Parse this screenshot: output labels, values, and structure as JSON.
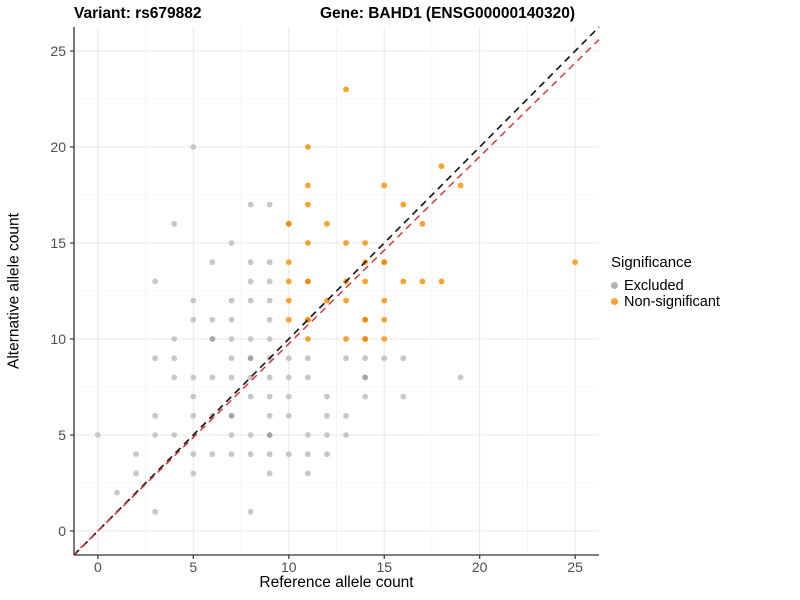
{
  "header": {
    "variant_title": "Variant: rs679882",
    "gene_title": "Gene: BAHD1 (ENSG00000140320)"
  },
  "chart_data": {
    "type": "scatter",
    "xlabel": "Reference allele count",
    "ylabel": "Alternative allele count",
    "xlim": [
      -1.25,
      26.25
    ],
    "ylim": [
      -1.25,
      26.25
    ],
    "xticks": [
      0,
      5,
      10,
      15,
      20,
      25
    ],
    "yticks": [
      0,
      5,
      10,
      15,
      20,
      25
    ],
    "grid": "major+minor",
    "legend_title": "Significance",
    "series": [
      {
        "name": "Excluded",
        "color": "#c7c7c7",
        "color_overlap": "#a4a4a4",
        "legend_color": "#b3b3b3",
        "points": [
          [
            5,
            20
          ],
          [
            8,
            17
          ],
          [
            9,
            17
          ],
          [
            4,
            16
          ],
          [
            7,
            15
          ],
          [
            6,
            14
          ],
          [
            8,
            14
          ],
          [
            9,
            14
          ],
          [
            3,
            13
          ],
          [
            8,
            13
          ],
          [
            9,
            13
          ],
          [
            5,
            12
          ],
          [
            7,
            12
          ],
          [
            8,
            12
          ],
          [
            9,
            12
          ],
          [
            5,
            11
          ],
          [
            6,
            11
          ],
          [
            7,
            11
          ],
          [
            9,
            11
          ],
          [
            4,
            10
          ],
          [
            6,
            10,
            2
          ],
          [
            7,
            10
          ],
          [
            8,
            10
          ],
          [
            9,
            10
          ],
          [
            3,
            9
          ],
          [
            4,
            9
          ],
          [
            7,
            9
          ],
          [
            8,
            9,
            2
          ],
          [
            9,
            9
          ],
          [
            10,
            9
          ],
          [
            11,
            9
          ],
          [
            13,
            9
          ],
          [
            14,
            9
          ],
          [
            15,
            9
          ],
          [
            16,
            9
          ],
          [
            4,
            8
          ],
          [
            5,
            8
          ],
          [
            6,
            8
          ],
          [
            7,
            8
          ],
          [
            8,
            8
          ],
          [
            9,
            8
          ],
          [
            10,
            8
          ],
          [
            11,
            8
          ],
          [
            14,
            8,
            2
          ],
          [
            19,
            8
          ],
          [
            5,
            7
          ],
          [
            8,
            7
          ],
          [
            9,
            7
          ],
          [
            10,
            7
          ],
          [
            12,
            7
          ],
          [
            14,
            7
          ],
          [
            16,
            7
          ],
          [
            3,
            6
          ],
          [
            5,
            6
          ],
          [
            6,
            6
          ],
          [
            7,
            6,
            2
          ],
          [
            9,
            6
          ],
          [
            10,
            6
          ],
          [
            12,
            6
          ],
          [
            13,
            6
          ],
          [
            0,
            5
          ],
          [
            3,
            5
          ],
          [
            4,
            5
          ],
          [
            7,
            5
          ],
          [
            8,
            5
          ],
          [
            9,
            5,
            2
          ],
          [
            11,
            5
          ],
          [
            12,
            5
          ],
          [
            13,
            5
          ],
          [
            2,
            4
          ],
          [
            5,
            4
          ],
          [
            6,
            4
          ],
          [
            7,
            4
          ],
          [
            8,
            4
          ],
          [
            9,
            4
          ],
          [
            10,
            4
          ],
          [
            11,
            4
          ],
          [
            12,
            4
          ],
          [
            2,
            3
          ],
          [
            5,
            3
          ],
          [
            9,
            3
          ],
          [
            11,
            3
          ],
          [
            1,
            2
          ],
          [
            3,
            1
          ],
          [
            8,
            1
          ]
        ]
      },
      {
        "name": "Non-significant",
        "color": "#fba32e",
        "color_overlap": "#f18a05",
        "legend_color": "#fba32e",
        "points": [
          [
            13,
            23
          ],
          [
            11,
            20
          ],
          [
            18,
            19
          ],
          [
            11,
            18
          ],
          [
            15,
            18
          ],
          [
            19,
            18
          ],
          [
            11,
            17
          ],
          [
            16,
            17
          ],
          [
            10,
            16,
            2
          ],
          [
            12,
            16
          ],
          [
            17,
            16
          ],
          [
            11,
            15
          ],
          [
            13,
            15
          ],
          [
            14,
            15
          ],
          [
            10,
            14
          ],
          [
            14,
            14
          ],
          [
            15,
            14,
            2
          ],
          [
            25,
            14
          ],
          [
            10,
            13
          ],
          [
            11,
            13,
            2
          ],
          [
            13,
            13
          ],
          [
            14,
            13
          ],
          [
            16,
            13
          ],
          [
            17,
            13
          ],
          [
            18,
            13
          ],
          [
            10,
            12
          ],
          [
            12,
            12
          ],
          [
            13,
            12
          ],
          [
            15,
            12
          ],
          [
            10,
            11
          ],
          [
            11,
            11,
            2
          ],
          [
            14,
            11,
            2
          ],
          [
            15,
            11
          ],
          [
            11,
            10
          ],
          [
            13,
            10
          ],
          [
            14,
            10,
            2
          ],
          [
            15,
            10
          ]
        ]
      }
    ],
    "lines": [
      {
        "name": "identity-line",
        "style": "dashed",
        "color": "#1c1c1c",
        "slope": 1,
        "intercept": 0
      },
      {
        "name": "fit-line",
        "style": "dashed",
        "color": "#e02a2a",
        "slope": 0.975,
        "intercept": 0
      }
    ],
    "legend_position": "right"
  },
  "style_colors": {
    "grid_major": "#e7e7e7",
    "grid_minor": "#f4f4f4",
    "axis_line": "#333333",
    "tick_label": "#4d4d4d"
  }
}
